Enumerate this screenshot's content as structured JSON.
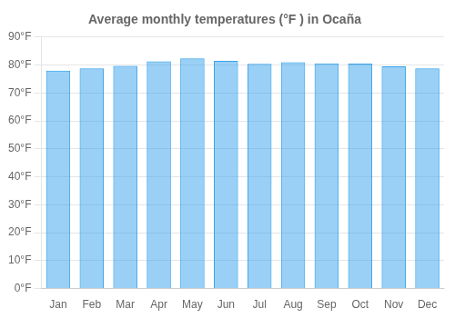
{
  "chart_data": {
    "type": "bar",
    "title": "Average monthly temperatures (°F ) in Ocaña",
    "categories": [
      "Jan",
      "Feb",
      "Mar",
      "Apr",
      "May",
      "Jun",
      "Jul",
      "Aug",
      "Sep",
      "Oct",
      "Nov",
      "Dec"
    ],
    "values": [
      78.0,
      78.8,
      79.7,
      81.3,
      82.4,
      81.5,
      80.4,
      81.0,
      80.6,
      80.5,
      79.5,
      78.8
    ],
    "ylim": [
      0,
      90
    ],
    "yticks": [
      {
        "value": 0,
        "label": "0°F"
      },
      {
        "value": 10,
        "label": "10°F"
      },
      {
        "value": 20,
        "label": "20°F"
      },
      {
        "value": 30,
        "label": "30°F"
      },
      {
        "value": 40,
        "label": "40°F"
      },
      {
        "value": 50,
        "label": "50°F"
      },
      {
        "value": 60,
        "label": "60°F"
      },
      {
        "value": 70,
        "label": "70°F"
      },
      {
        "value": 80,
        "label": "80°F"
      },
      {
        "value": 90,
        "label": "90°F"
      }
    ],
    "grid": true
  }
}
